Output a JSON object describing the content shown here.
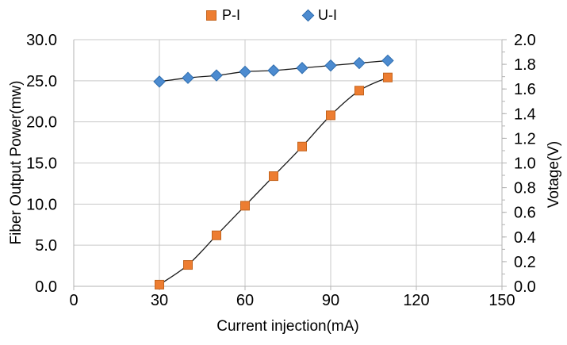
{
  "chart_data": {
    "type": "line",
    "x": [
      30,
      40,
      50,
      60,
      70,
      80,
      90,
      100,
      110
    ],
    "series": [
      {
        "name": "P-I",
        "axis": "left",
        "marker": "square",
        "color": "#ED7D31",
        "edge": "#C4641D",
        "line_color": "#1A1A1A",
        "values": [
          0.2,
          2.6,
          6.2,
          9.8,
          13.4,
          17.0,
          20.8,
          23.8,
          25.4
        ]
      },
      {
        "name": "U-I",
        "axis": "right",
        "marker": "diamond",
        "color": "#4C8BD0",
        "edge": "#2F6DAE",
        "line_color": "#1A1A1A",
        "values": [
          1.66,
          1.69,
          1.71,
          1.74,
          1.75,
          1.77,
          1.79,
          1.81,
          1.83
        ]
      }
    ],
    "title": "",
    "xlabel": "Current injection(mA)",
    "ylabel_left": "Fiber Output Power(mw)",
    "ylabel_right": "Votage(V)",
    "xlim": [
      0,
      150
    ],
    "x_ticks": [
      "0",
      "30",
      "60",
      "90",
      "120",
      "150"
    ],
    "ylim_left": [
      0,
      30
    ],
    "y_ticks_left": [
      "0.0",
      "5.0",
      "10.0",
      "15.0",
      "20.0",
      "25.0",
      "30.0"
    ],
    "ylim_right": [
      0,
      2
    ],
    "y_ticks_right": [
      "0.0",
      "0.2",
      "0.4",
      "0.6",
      "0.8",
      "1.0",
      "1.2",
      "1.4",
      "1.6",
      "1.8",
      "2.0"
    ],
    "y_minor_step_right": 0.1,
    "grid": true,
    "smooth_lines": true,
    "legend_position": "top-center",
    "colors": {
      "grid": "#C9C9C9",
      "axis": "#B3B3B3",
      "text": "#000000",
      "background": "#FFFFFF"
    }
  }
}
